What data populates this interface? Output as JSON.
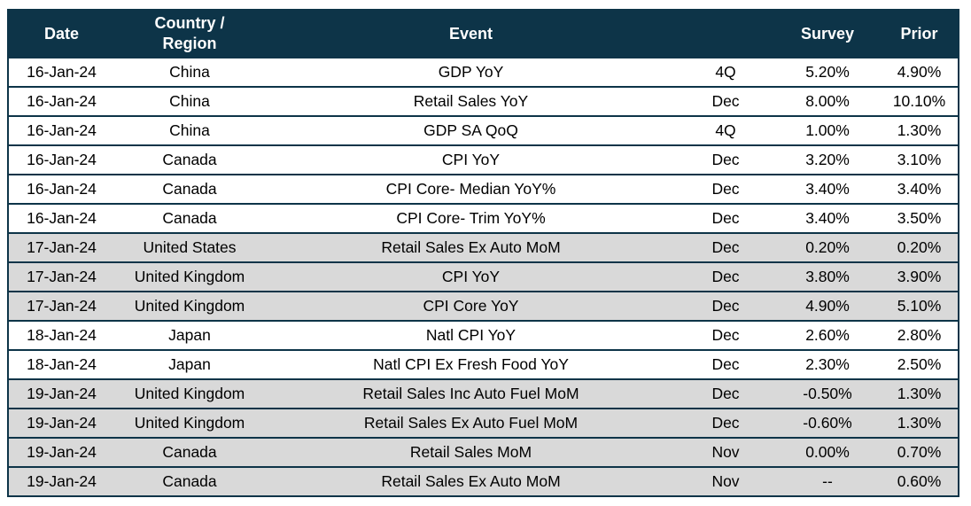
{
  "colors": {
    "header_bg": "#0d3448",
    "header_text": "#ffffff",
    "row_bg": "#ffffff",
    "row_alt_bg": "#d9d9d9",
    "border": "#0d3448",
    "body_text": "#000000"
  },
  "table": {
    "headers": [
      "Date",
      "Country / Region",
      "Event",
      "",
      "Survey",
      "Prior"
    ],
    "row_keys": [
      "date",
      "country",
      "event",
      "period",
      "survey",
      "prior"
    ],
    "rows": [
      {
        "date": "16-Jan-24",
        "country": "China",
        "event": "GDP YoY",
        "period": "4Q",
        "survey": "5.20%",
        "prior": "4.90%",
        "shaded": false
      },
      {
        "date": "16-Jan-24",
        "country": "China",
        "event": "Retail Sales YoY",
        "period": "Dec",
        "survey": "8.00%",
        "prior": "10.10%",
        "shaded": false
      },
      {
        "date": "16-Jan-24",
        "country": "China",
        "event": "GDP SA QoQ",
        "period": "4Q",
        "survey": "1.00%",
        "prior": "1.30%",
        "shaded": false
      },
      {
        "date": "16-Jan-24",
        "country": "Canada",
        "event": "CPI YoY",
        "period": "Dec",
        "survey": "3.20%",
        "prior": "3.10%",
        "shaded": false
      },
      {
        "date": "16-Jan-24",
        "country": "Canada",
        "event": "CPI Core- Median YoY%",
        "period": "Dec",
        "survey": "3.40%",
        "prior": "3.40%",
        "shaded": false
      },
      {
        "date": "16-Jan-24",
        "country": "Canada",
        "event": "CPI Core- Trim YoY%",
        "period": "Dec",
        "survey": "3.40%",
        "prior": "3.50%",
        "shaded": false
      },
      {
        "date": "17-Jan-24",
        "country": "United States",
        "event": "Retail Sales Ex Auto MoM",
        "period": "Dec",
        "survey": "0.20%",
        "prior": "0.20%",
        "shaded": true
      },
      {
        "date": "17-Jan-24",
        "country": "United Kingdom",
        "event": "CPI YoY",
        "period": "Dec",
        "survey": "3.80%",
        "prior": "3.90%",
        "shaded": true
      },
      {
        "date": "17-Jan-24",
        "country": "United Kingdom",
        "event": "CPI Core YoY",
        "period": "Dec",
        "survey": "4.90%",
        "prior": "5.10%",
        "shaded": true
      },
      {
        "date": "18-Jan-24",
        "country": "Japan",
        "event": "Natl CPI YoY",
        "period": "Dec",
        "survey": "2.60%",
        "prior": "2.80%",
        "shaded": false
      },
      {
        "date": "18-Jan-24",
        "country": "Japan",
        "event": "Natl CPI Ex Fresh Food YoY",
        "period": "Dec",
        "survey": "2.30%",
        "prior": "2.50%",
        "shaded": false
      },
      {
        "date": "19-Jan-24",
        "country": "United Kingdom",
        "event": "Retail Sales Inc Auto Fuel MoM",
        "period": "Dec",
        "survey": "-0.50%",
        "prior": "1.30%",
        "shaded": true
      },
      {
        "date": "19-Jan-24",
        "country": "United Kingdom",
        "event": "Retail Sales Ex Auto Fuel MoM",
        "period": "Dec",
        "survey": "-0.60%",
        "prior": "1.30%",
        "shaded": true
      },
      {
        "date": "19-Jan-24",
        "country": "Canada",
        "event": "Retail Sales MoM",
        "period": "Nov",
        "survey": "0.00%",
        "prior": "0.70%",
        "shaded": true
      },
      {
        "date": "19-Jan-24",
        "country": "Canada",
        "event": "Retail Sales Ex Auto MoM",
        "period": "Nov",
        "survey": "--",
        "prior": "0.60%",
        "shaded": true
      }
    ]
  }
}
